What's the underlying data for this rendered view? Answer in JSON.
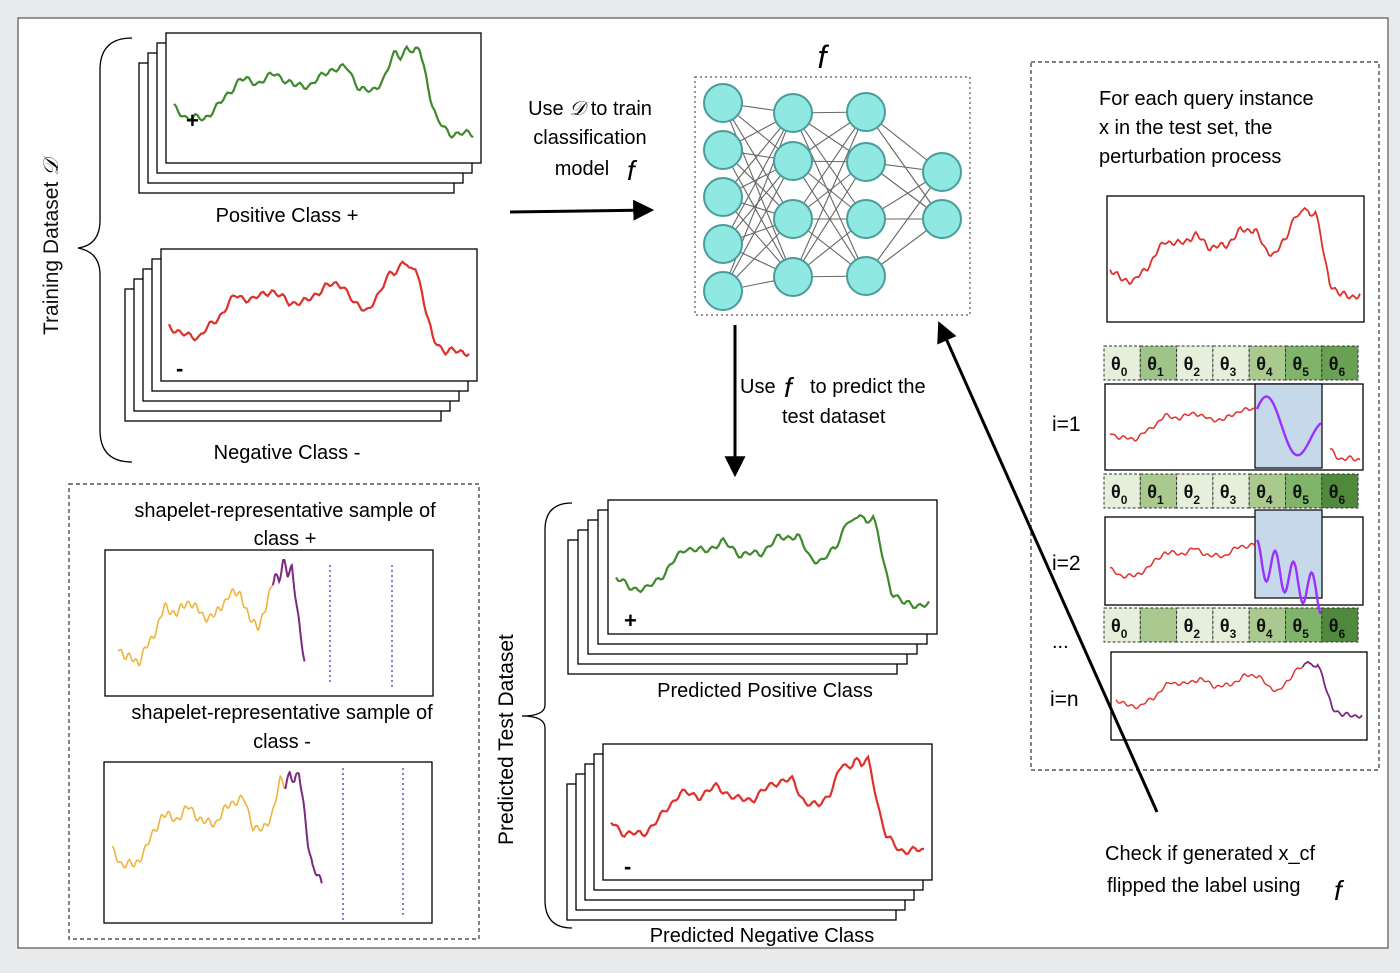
{
  "training": {
    "dataset_label": "Training Dataset",
    "dataset_symbol": "𝒟",
    "positive_label": "Positive Class +",
    "negative_label": "Negative Class -",
    "plus_mark": "+",
    "minus_mark": "-"
  },
  "train_arrow": {
    "line1": "Use",
    "symbol": "𝒟",
    "line1_rest": "to train",
    "line2": "classification",
    "line3": "model"
  },
  "model": {
    "symbol": "f"
  },
  "predict_arrow": {
    "line1a": "Use",
    "line1b": "to predict the",
    "line2": "test dataset"
  },
  "shapelet": {
    "label_pos_1": "shapelet-representative sample of",
    "label_pos_2": "class +",
    "label_neg_1": "shapelet-representative sample of",
    "label_neg_2": "class -"
  },
  "predicted": {
    "dataset_label": "Predicted Test  Dataset",
    "positive_label": "Predicted Positive Class",
    "negative_label": "Predicted Negative Class",
    "plus_mark": "+",
    "minus_mark": "-"
  },
  "perturbation": {
    "line1": "For each query instance",
    "line2": "x in the test set, the",
    "line3": "perturbation process",
    "thetas": [
      "θ0",
      "θ1",
      "θ2",
      "θ3",
      "θ4",
      "θ5",
      "θ6"
    ],
    "rows": [
      "i=1",
      "i=2",
      "i=n"
    ],
    "ellipsis": "..."
  },
  "check": {
    "line1": "Check if generated x_cf",
    "line2": "flipped the label using"
  },
  "colors": {
    "positive": "#3f8a2a",
    "negative": "#e0302a",
    "shapelet_base": "#f0b43c",
    "shapelet_highlight": "#7a2a80",
    "perturb": "#9b30ff",
    "node_fill": "#8fe8e2",
    "node_stroke": "#4a9c9a",
    "highlight_box": "#c5d9ea"
  }
}
